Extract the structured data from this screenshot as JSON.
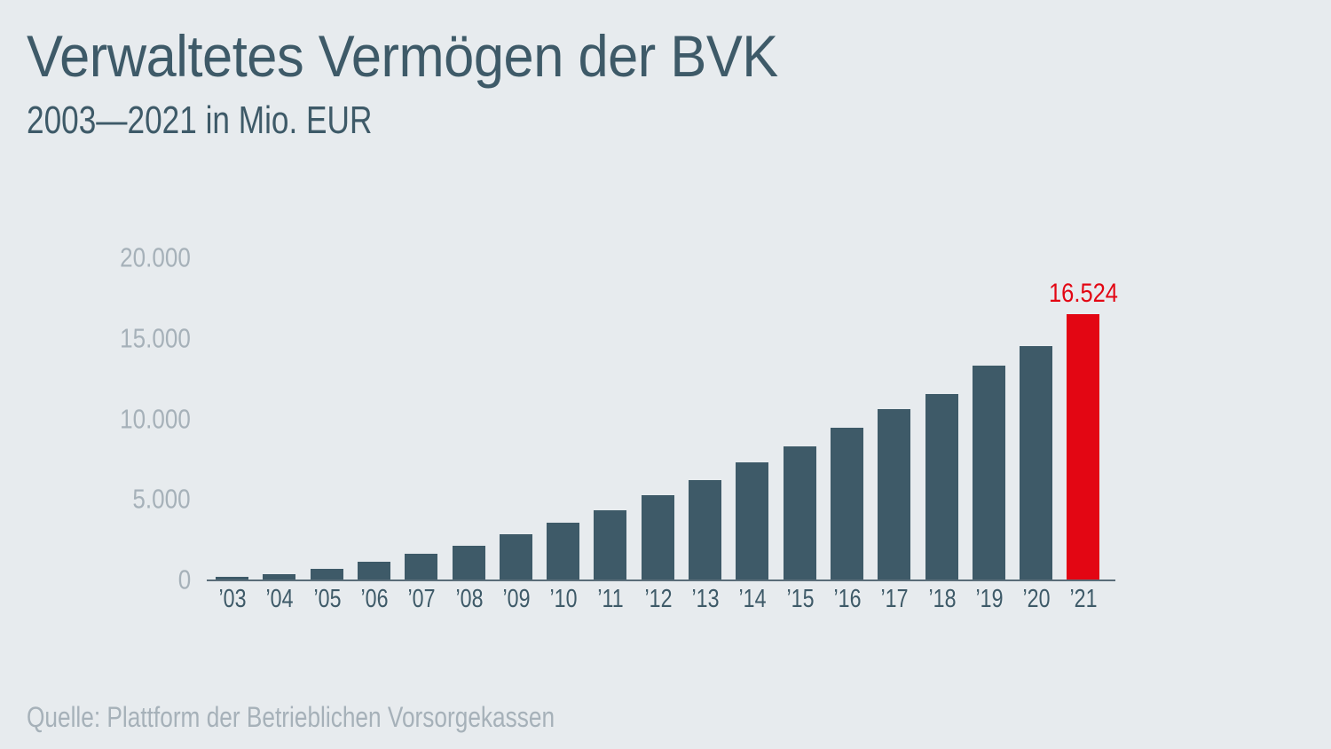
{
  "chart_data": {
    "type": "bar",
    "title": "Verwaltetes Vermögen der BVK",
    "subtitle": "2003—2021 in Mio. EUR",
    "source": "Quelle: Plattform der Betrieblichen Vorsorgekassen",
    "categories": [
      "’03",
      "’04",
      "’05",
      "’06",
      "’07",
      "’08",
      "’09",
      "’10",
      "’11",
      "’12",
      "’13",
      "’14",
      "’15",
      "’16",
      "’17",
      "’18",
      "’19",
      "’20",
      "’21"
    ],
    "values": [
      200,
      400,
      700,
      1150,
      1630,
      2150,
      2870,
      3600,
      4350,
      5300,
      6200,
      7350,
      8330,
      9450,
      10650,
      11550,
      13350,
      14550,
      16524
    ],
    "highlight_index": 18,
    "highlight_label": "16.524",
    "ylim": [
      0,
      20000
    ],
    "yticks": [
      {
        "value": 0,
        "label": "0"
      },
      {
        "value": 5000,
        "label": "5.000"
      },
      {
        "value": 10000,
        "label": "10.000"
      },
      {
        "value": 15000,
        "label": "15.000"
      },
      {
        "value": 20000,
        "label": "20.000"
      }
    ],
    "grid": false,
    "legend": "none",
    "colors": {
      "background": "#e7ebee",
      "bar": "#3e5a68",
      "highlight": "#e30613",
      "axis": "#5a6d79",
      "ink": "#3e5a68",
      "muted": "#a6b1b9"
    }
  }
}
